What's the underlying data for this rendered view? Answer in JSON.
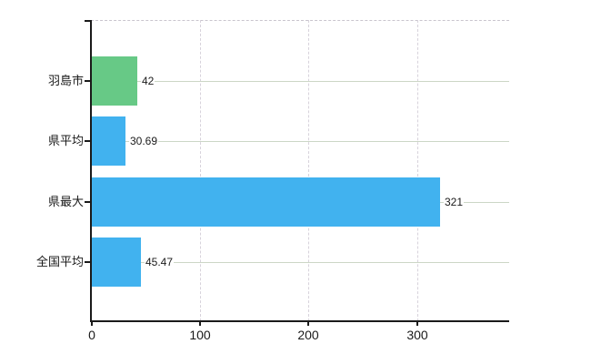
{
  "chart_data": {
    "type": "bar",
    "orientation": "horizontal",
    "title": "",
    "xlabel": "",
    "ylabel": "",
    "categories": [
      "羽島市",
      "県平均",
      "県最大",
      "全国平均"
    ],
    "values": [
      42,
      30.69,
      321,
      45.47
    ],
    "value_labels": [
      "42",
      "30.69",
      "321",
      "45.47"
    ],
    "bar_colors": [
      "#67c986",
      "#41b2ef",
      "#41b2ef",
      "#41b2ef"
    ],
    "x_ticks": [
      0,
      100,
      200,
      300
    ],
    "x_tick_labels": [
      "0",
      "100",
      "200",
      "300"
    ],
    "xlim": [
      0,
      385
    ],
    "grid": true,
    "legend": false,
    "colors": {
      "axis": "#1a1a1a",
      "horizontal_gridline": "#ccd6c6",
      "vertical_gridline": "#d7d2db",
      "background": "#ffffff",
      "green_bar": "#67c986",
      "blue_bar": "#41b2ef"
    }
  }
}
